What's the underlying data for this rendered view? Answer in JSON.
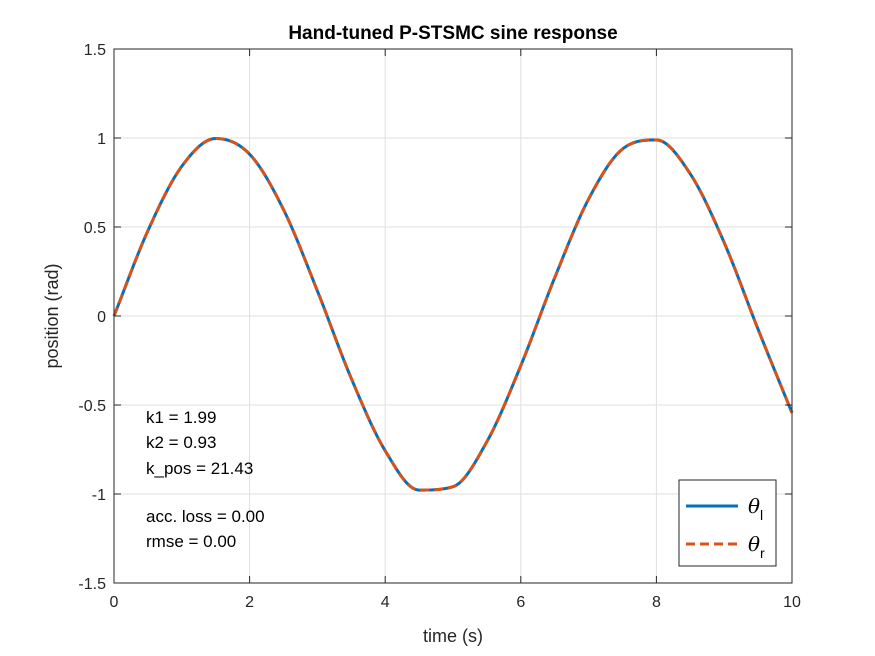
{
  "chart_data": {
    "type": "line",
    "title": "Hand-tuned P-STSMC sine response",
    "xlabel": "time (s)",
    "ylabel": "position (rad)",
    "xlim": [
      0,
      10
    ],
    "ylim": [
      -1.5,
      1.5
    ],
    "xticks": [
      0,
      2,
      4,
      6,
      8,
      10
    ],
    "xtick_labels": [
      "0",
      "2",
      "4",
      "6",
      "8",
      "10"
    ],
    "yticks": [
      1.5,
      1,
      0.5,
      0,
      -0.5,
      -1,
      -1.5
    ],
    "ytick_labels": [
      "1.5",
      "1",
      "0.5",
      "0",
      "-0.5",
      "-1",
      "-1.5"
    ],
    "grid": true,
    "x": [
      0,
      0.5,
      1,
      1.5,
      2,
      2.5,
      3,
      3.5,
      4,
      4.5,
      5,
      5.5,
      6,
      6.5,
      7,
      7.5,
      8,
      8.5,
      9,
      9.5,
      10
    ],
    "series": [
      {
        "name": "θl",
        "symbol": "θ",
        "subscript": "l",
        "color": "#0072BD",
        "style": "solid",
        "values": [
          0,
          0.479,
          0.841,
          0.997,
          0.909,
          0.598,
          0.141,
          -0.351,
          -0.757,
          -0.978,
          -0.959,
          -0.706,
          -0.279,
          0.215,
          0.657,
          0.938,
          0.989,
          0.798,
          0.412,
          -0.075,
          -0.544
        ]
      },
      {
        "name": "θr",
        "symbol": "θ",
        "subscript": "r",
        "color": "#D95319",
        "style": "dashed",
        "values": [
          0,
          0.479,
          0.841,
          0.997,
          0.909,
          0.598,
          0.141,
          -0.351,
          -0.757,
          -0.978,
          -0.959,
          -0.706,
          -0.279,
          0.215,
          0.657,
          0.938,
          0.989,
          0.798,
          0.412,
          -0.075,
          -0.544
        ]
      }
    ],
    "annotations": [
      "k1 = 1.99",
      "k2 = 0.93",
      "k_pos = 21.43",
      "acc. loss = 0.00",
      "rmse = 0.00"
    ],
    "legend_position": "bottom-right"
  }
}
